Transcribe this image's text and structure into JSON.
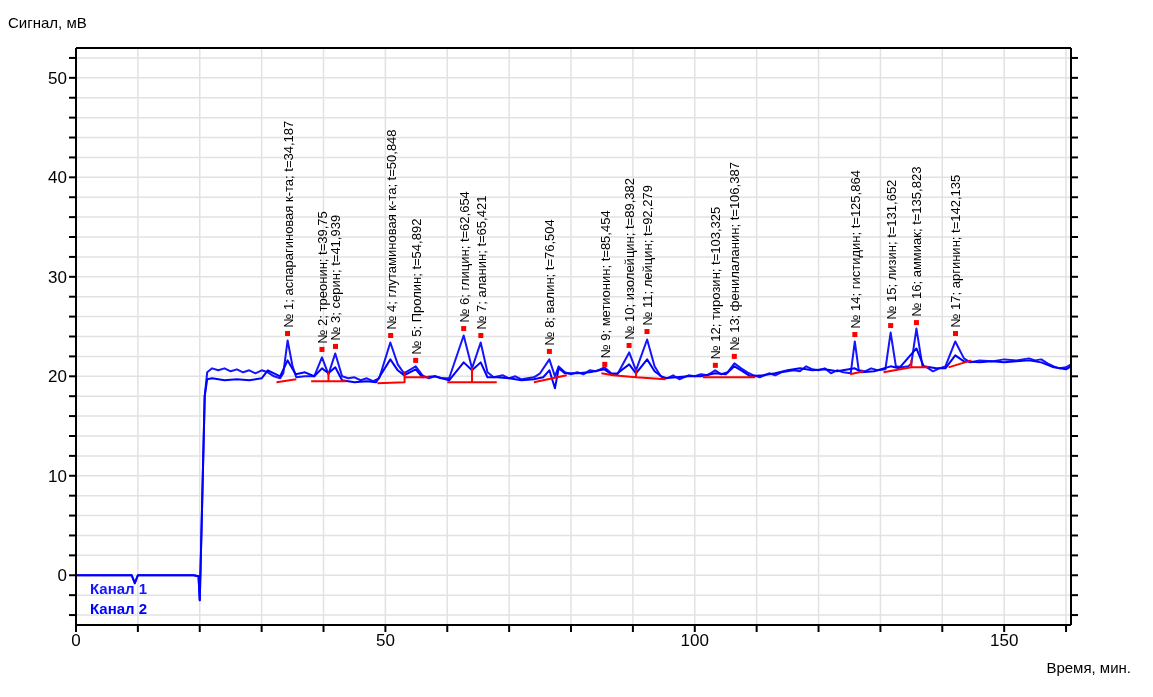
{
  "chart_data": {
    "type": "line",
    "xlabel": "Время, мин.",
    "ylabel": "Сигнал, мВ",
    "xlim": [
      0,
      160.8
    ],
    "ylim": [
      -5,
      53
    ],
    "xticks": [
      0,
      {
        "value": 10,
        "label": null
      },
      {
        "value": 20,
        "label": null
      },
      {
        "value": 30,
        "label": null
      },
      {
        "value": 40,
        "label": null
      },
      50,
      {
        "value": 60,
        "label": null
      },
      {
        "value": 70,
        "label": null
      },
      {
        "value": 80,
        "label": null
      },
      {
        "value": 90,
        "label": null
      },
      100,
      {
        "value": 110,
        "label": null
      },
      {
        "value": 120,
        "label": null
      },
      {
        "value": 130,
        "label": null
      },
      {
        "value": 140,
        "label": null
      },
      150,
      {
        "value": 160,
        "label": null
      }
    ],
    "yticks": [
      {
        "value": -4,
        "label": null
      },
      {
        "value": -2,
        "label": null
      },
      0,
      {
        "value": 2,
        "label": null
      },
      {
        "value": 4,
        "label": null
      },
      {
        "value": 6,
        "label": null
      },
      {
        "value": 8,
        "label": null
      },
      10,
      {
        "value": 12,
        "label": null
      },
      {
        "value": 14,
        "label": null
      },
      {
        "value": 16,
        "label": null
      },
      {
        "value": 18,
        "label": null
      },
      20,
      {
        "value": 22,
        "label": null
      },
      {
        "value": 24,
        "label": null
      },
      {
        "value": 26,
        "label": null
      },
      {
        "value": 28,
        "label": null
      },
      30,
      {
        "value": 32,
        "label": null
      },
      {
        "value": 34,
        "label": null
      },
      {
        "value": 36,
        "label": null
      },
      {
        "value": 38,
        "label": null
      },
      40,
      {
        "value": 42,
        "label": null
      },
      {
        "value": 44,
        "label": null
      },
      {
        "value": 46,
        "label": null
      },
      {
        "value": 48,
        "label": null
      },
      50,
      {
        "value": 52,
        "label": null
      }
    ],
    "grid": true,
    "legend": "bottom left",
    "marker": "none",
    "line_style": "solid",
    "series": [
      {
        "name": "Канал 1",
        "color": "#1414ff",
        "x": [
          0,
          9,
          9.5,
          10,
          15,
          19,
          19.8,
          20.0,
          20.3,
          20.8,
          21.2,
          22,
          23,
          24,
          25,
          26,
          27,
          28,
          29,
          30,
          31,
          32,
          33,
          33.5,
          34.2,
          35,
          35.6,
          37,
          38.5,
          39.75,
          40.8,
          41.9,
          43,
          44,
          45,
          46,
          47,
          48,
          49,
          50.8,
          52,
          53,
          54.9,
          56,
          57,
          58,
          59,
          60.3,
          62.65,
          64,
          65.4,
          66.5,
          67.5,
          69,
          70,
          71,
          72,
          73,
          74,
          75,
          76.5,
          77.4,
          78,
          79,
          80,
          81,
          82,
          83,
          84,
          85.4,
          86.5,
          87.5,
          89.4,
          90.5,
          92.3,
          93.5,
          94.5,
          95.5,
          96.5,
          97.5,
          99,
          100,
          101,
          102,
          103.3,
          104.3,
          105.3,
          106.4,
          107.5,
          108.5,
          109.5,
          110.5,
          112,
          113,
          114,
          116,
          117,
          118,
          119,
          120,
          121,
          122,
          123,
          124,
          125.2,
          125.86,
          126.5,
          127.5,
          128.5,
          129.5,
          130.8,
          131.65,
          132.5,
          133.5,
          134.5,
          135.0,
          135.82,
          136.8,
          137.5,
          138.5,
          139.5,
          140.5,
          142.1,
          143.5,
          144.5,
          146,
          148,
          150,
          152,
          154,
          155,
          156,
          157,
          158,
          159,
          160,
          160.8
        ],
        "values": [
          0,
          0,
          -0.8,
          0,
          0,
          0,
          -0.1,
          -2.5,
          5,
          18,
          20.4,
          20.8,
          20.6,
          20.8,
          20.5,
          20.7,
          20.4,
          20.6,
          20.3,
          20.6,
          20.4,
          20.0,
          19.8,
          20.3,
          23.6,
          21.0,
          19.9,
          20.0,
          20.0,
          21.9,
          20.2,
          22.3,
          20.0,
          19.8,
          19.9,
          19.6,
          19.8,
          19.5,
          19.8,
          23.4,
          21.2,
          20.3,
          21.0,
          20.1,
          19.8,
          20.0,
          19.8,
          19.8,
          24.1,
          20.8,
          23.4,
          20.4,
          19.9,
          20.1,
          19.8,
          20.0,
          19.7,
          19.8,
          19.9,
          20.3,
          21.7,
          20.0,
          21.0,
          20.4,
          20.2,
          20.4,
          20.2,
          20.6,
          20.5,
          20.9,
          20.3,
          20.2,
          22.4,
          20.6,
          23.7,
          21.0,
          20.0,
          19.8,
          20.1,
          19.7,
          20.1,
          20.0,
          20.2,
          20.1,
          20.6,
          20.2,
          20.4,
          21.3,
          20.8,
          20.4,
          20.1,
          19.9,
          20.3,
          20.1,
          20.4,
          20.6,
          20.5,
          21.0,
          20.7,
          20.6,
          20.8,
          20.3,
          20.6,
          20.4,
          20.3,
          23.5,
          20.6,
          20.5,
          20.8,
          20.6,
          20.7,
          24.4,
          21.0,
          20.9,
          21.0,
          21.3,
          24.8,
          21.0,
          20.9,
          20.5,
          20.8,
          21.0,
          23.5,
          21.8,
          21.4,
          21.6,
          21.5,
          21.7,
          21.6,
          21.8,
          21.6,
          21.7,
          21.3,
          21.0,
          20.8,
          20.9,
          21.2
        ]
      },
      {
        "name": "Канал 2",
        "color": "#0000ff",
        "x": [
          0,
          9,
          9.5,
          10,
          15,
          19,
          19.8,
          20.0,
          20.3,
          20.8,
          21.2,
          22,
          24,
          26,
          28,
          30,
          31,
          32,
          33,
          34.2,
          35.5,
          37,
          38.5,
          39.75,
          40.8,
          41.9,
          43,
          45,
          47,
          48.5,
          50.8,
          52,
          53,
          54.9,
          56,
          58,
          60.3,
          62.65,
          64,
          65.4,
          66.5,
          68,
          70,
          72,
          74,
          75.5,
          76.5,
          77.4,
          78,
          79,
          81,
          83,
          85.4,
          86.5,
          87.5,
          89.4,
          90.5,
          92.3,
          93.5,
          95,
          97,
          99,
          101,
          103.3,
          105,
          106.4,
          107.5,
          109,
          111,
          113,
          115,
          117,
          119,
          121,
          123,
          125.86,
          127,
          129,
          131.65,
          133,
          135.82,
          137,
          139,
          140.5,
          142.1,
          143.5,
          146,
          148,
          150,
          152,
          154,
          156,
          158,
          160,
          160.8
        ],
        "values": [
          0,
          0,
          -0.8,
          0,
          0,
          0,
          -0.1,
          -2.5,
          5,
          18,
          19.7,
          19.8,
          19.6,
          19.7,
          19.6,
          19.8,
          20.6,
          20.3,
          20.0,
          21.6,
          20.2,
          20.4,
          20.0,
          20.8,
          20.3,
          20.9,
          19.6,
          19.4,
          19.5,
          19.4,
          21.7,
          20.6,
          20.1,
          20.7,
          19.9,
          20.0,
          19.6,
          21.4,
          20.6,
          21.4,
          19.9,
          19.9,
          19.8,
          19.6,
          19.7,
          19.9,
          20.6,
          18.8,
          20.8,
          20.3,
          20.3,
          20.4,
          20.7,
          20.2,
          20.3,
          21.2,
          20.3,
          21.7,
          20.5,
          19.8,
          19.9,
          20.0,
          20.0,
          20.3,
          20.2,
          21.0,
          20.6,
          20.0,
          20.1,
          20.3,
          20.6,
          20.8,
          20.6,
          20.7,
          20.5,
          20.8,
          20.4,
          20.5,
          21.0,
          20.8,
          22.8,
          21.0,
          20.8,
          20.8,
          22.1,
          21.5,
          21.4,
          21.5,
          21.4,
          21.5,
          21.6,
          21.4,
          20.9,
          20.7,
          21.0
        ]
      },
      {
        "color": "#ff0000",
        "x": [
          32.4,
          35.6,
          36,
          38.0,
          40.8,
          40.8,
          40.8,
          43.7,
          44,
          48.7,
          53.1,
          53.1,
          53.1,
          57.1,
          58,
          60.0,
          64.0,
          64.0,
          64.0,
          68.0,
          70,
          74.0,
          79.3,
          80,
          84.9,
          86.8,
          90.5,
          90.5,
          90.5,
          95.3,
          98,
          101.3,
          109.8,
          115,
          125.1,
          127.3,
          128,
          130.5,
          135.0,
          135.0,
          135.0,
          137.8,
          139,
          141.0,
          144.7
        ],
        "values": [
          19.4,
          19.7,
          null,
          19.5,
          19.5,
          20.4,
          19.5,
          19.5,
          null,
          19.3,
          19.4,
          20.4,
          19.9,
          19.9,
          null,
          19.4,
          19.4,
          20.8,
          19.4,
          19.4,
          null,
          19.4,
          20.1,
          null,
          20.3,
          20.1,
          19.9,
          20.6,
          19.9,
          19.7,
          null,
          19.9,
          19.9,
          null,
          20.2,
          20.5,
          null,
          20.4,
          20.9,
          21.6,
          20.9,
          20.9,
          null,
          20.9,
          21.6
        ]
      }
    ],
    "annotations": [
      {
        "text": "№ 1; аспарагиновая к-та; t=34,187",
        "x": 34.187,
        "y": 24.3
      },
      {
        "text": "№ 2; треонин; t=39,75",
        "x": 39.75,
        "y": 22.7
      },
      {
        "text": "№ 3; серин; t=41,939",
        "x": 41.939,
        "y": 23.0
      },
      {
        "text": "№ 4; глутаминовая к-та; t=50,848",
        "x": 50.848,
        "y": 24.1
      },
      {
        "text": "№ 5; Пролин; t=54,892",
        "x": 54.892,
        "y": 21.6
      },
      {
        "text": "№ 6; глицин; t=62,654",
        "x": 62.654,
        "y": 24.8
      },
      {
        "text": "№ 7; аланин; t=65,421",
        "x": 65.421,
        "y": 24.1
      },
      {
        "text": "№ 8; валин; t=76,504",
        "x": 76.504,
        "y": 22.5
      },
      {
        "text": "№ 9; метионин; t=85,454",
        "x": 85.454,
        "y": 21.2
      },
      {
        "text": "№ 10; изолейцин; t=89,382",
        "x": 89.382,
        "y": 23.1
      },
      {
        "text": "№ 11; лейцин; t=92,279",
        "x": 92.279,
        "y": 24.5
      },
      {
        "text": "№ 12; тирозин; t=103,325",
        "x": 103.325,
        "y": 21.1
      },
      {
        "text": "№ 13; фенилаланин; t=106,387",
        "x": 106.387,
        "y": 22.0
      },
      {
        "text": "№ 14; гистидин; t=125,864",
        "x": 125.864,
        "y": 24.2
      },
      {
        "text": "№ 15; лизин; t=131,652",
        "x": 131.652,
        "y": 25.1
      },
      {
        "text": "№ 16; аммиак; t=135,823",
        "x": 135.823,
        "y": 25.4
      },
      {
        "text": "№ 17; аргинин; t=142,135",
        "x": 142.135,
        "y": 24.3
      }
    ]
  }
}
